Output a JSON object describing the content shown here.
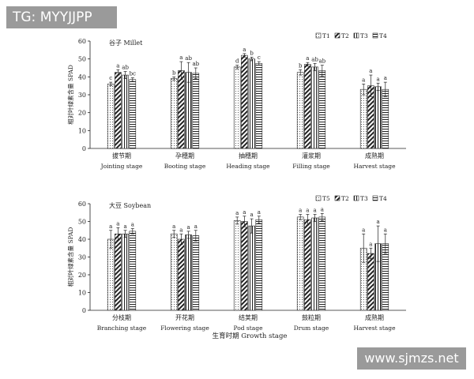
{
  "watermarks": {
    "top_left": "TG: MYYJJPP",
    "bottom_right": "www.sjmzs.net"
  },
  "x_axis_title": "生育时期  Growth stage",
  "chart_data": [
    {
      "type": "bar",
      "title": "谷子 Millet",
      "ylabel": "相对叶绿素含量  SPAD",
      "ylim": [
        0,
        60
      ],
      "yticks": [
        0,
        10,
        20,
        30,
        40,
        50,
        60
      ],
      "legend": [
        "T1",
        "T2",
        "T3",
        "T4"
      ],
      "legend_position": "top-right",
      "categories": [
        {
          "zh": "拔节期",
          "en": "Jointing stage"
        },
        {
          "zh": "孕穗期",
          "en": "Booting stage"
        },
        {
          "zh": "抽穗期",
          "en": "Heading stage"
        },
        {
          "zh": "灌浆期",
          "en": "Filling stage"
        },
        {
          "zh": "成熟期",
          "en": "Harvest stage"
        }
      ],
      "series": [
        {
          "name": "T1",
          "values": [
            36,
            39,
            45.5,
            42.5,
            33
          ],
          "errors": [
            1,
            1,
            1,
            1.5,
            3
          ],
          "letters": [
            "c",
            "b",
            "d",
            "b",
            "a"
          ]
        },
        {
          "name": "T2",
          "values": [
            42.5,
            43.5,
            52,
            47,
            35
          ],
          "errors": [
            1.5,
            5,
            1,
            1,
            6
          ],
          "letters": [
            "a",
            "a",
            "a",
            "a",
            "a"
          ]
        },
        {
          "name": "T3",
          "values": [
            41,
            42.5,
            50,
            45.5,
            34.5
          ],
          "errors": [
            2,
            5.5,
            1,
            2,
            2
          ],
          "letters": [
            "ab",
            "ab",
            "b",
            "ab",
            "a"
          ]
        },
        {
          "name": "T4",
          "values": [
            38.5,
            42,
            47.5,
            43.5,
            33
          ],
          "errors": [
            1,
            3,
            1,
            3,
            4
          ],
          "letters": [
            "bc",
            "ab",
            "c",
            "ab",
            "a"
          ]
        }
      ]
    },
    {
      "type": "bar",
      "title": "大豆  Soybean",
      "ylabel": "相对叶绿素含量  SPAD",
      "ylim": [
        0,
        60
      ],
      "yticks": [
        0,
        10,
        20,
        30,
        40,
        50,
        60
      ],
      "legend": [
        "T5",
        "T2",
        "T3",
        "T4"
      ],
      "legend_position": "top-right",
      "categories": [
        {
          "zh": "分枝期",
          "en": "Branching stage"
        },
        {
          "zh": "开花期",
          "en": "Flowering stage"
        },
        {
          "zh": "结荚期",
          "en": "Pod stage"
        },
        {
          "zh": "鼓粒期",
          "en": "Drum stage"
        },
        {
          "zh": "成熟期",
          "en": "Harvest stage"
        }
      ],
      "series": [
        {
          "name": "T5",
          "values": [
            40,
            43,
            50.5,
            52.5,
            35
          ],
          "errors": [
            5,
            2,
            2,
            1.5,
            8
          ],
          "letters": [
            "a",
            "a",
            "a",
            "a",
            "a"
          ]
        },
        {
          "name": "T2",
          "values": [
            43,
            40,
            50,
            51,
            32
          ],
          "errors": [
            3.5,
            3,
            3,
            3,
            3
          ],
          "letters": [
            "a",
            "a",
            "a",
            "a",
            "a"
          ]
        },
        {
          "name": "T3",
          "values": [
            43,
            42.5,
            47.5,
            52,
            37.5
          ],
          "errors": [
            2,
            2,
            4,
            2,
            10
          ],
          "letters": [
            "a",
            "a",
            "a",
            "a",
            "a"
          ]
        },
        {
          "name": "T4",
          "values": [
            44.5,
            42,
            51,
            52.5,
            37.5
          ],
          "errors": [
            1.5,
            3,
            2,
            2,
            5.5
          ],
          "letters": [
            "a",
            "a",
            "a",
            "a",
            "a"
          ]
        }
      ]
    }
  ]
}
